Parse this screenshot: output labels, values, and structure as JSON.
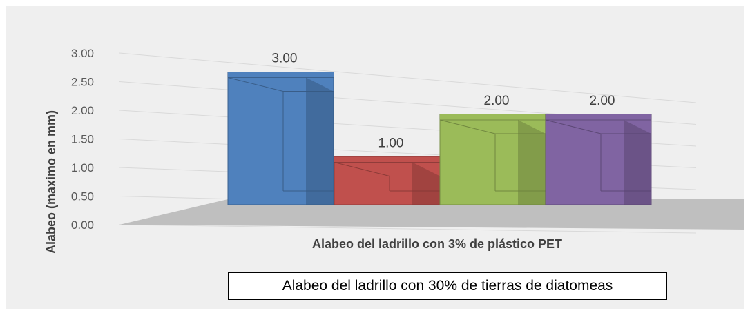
{
  "chart_data": {
    "type": "bar",
    "categories": [
      "",
      "",
      "",
      ""
    ],
    "values": [
      3.0,
      1.0,
      2.0,
      2.0
    ],
    "data_labels": [
      "3.00",
      "1.00",
      "2.00",
      "2.00"
    ],
    "bar_colors": [
      "#4f81bd",
      "#c0504d",
      "#9bbb59",
      "#8064a2"
    ],
    "ylabel": "Alabeo (maximo en mm)",
    "xlabel": "Alabeo del ladrillo con 3% de plástico PET",
    "ylim": [
      0,
      3.0
    ],
    "y_ticks": [
      "0.00",
      "0.50",
      "1.00",
      "1.50",
      "2.00",
      "2.50",
      "3.00"
    ],
    "style": "3d-column",
    "grid": true,
    "legend": "none"
  },
  "caption": "Alabeo del ladrillo con 30% de tierras de diatomeas"
}
